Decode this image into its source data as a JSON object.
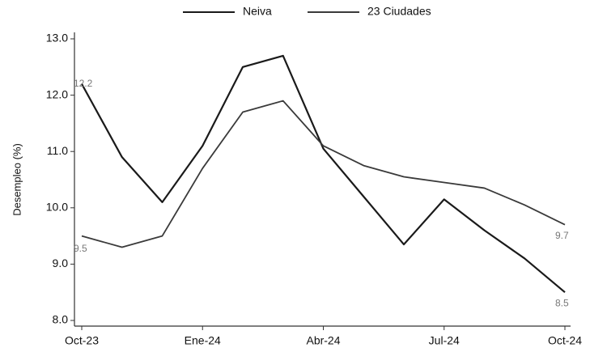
{
  "chart_data": {
    "type": "line",
    "ylabel": "Desempleo (%)",
    "categories": [
      "Oct-23",
      null,
      null,
      "Ene-24",
      null,
      null,
      "Abr-24",
      null,
      null,
      "Jul-24",
      null,
      null,
      "Oct-24"
    ],
    "series": [
      {
        "name": "Neiva",
        "color": "#1a1a1a",
        "values": [
          12.2,
          10.9,
          10.1,
          11.1,
          12.5,
          12.7,
          11.05,
          10.2,
          9.35,
          10.15,
          9.6,
          9.1,
          8.5
        ],
        "value_labels": [
          "12.2",
          null,
          null,
          null,
          null,
          null,
          null,
          null,
          null,
          null,
          null,
          null,
          "8.5"
        ]
      },
      {
        "name": "23 Ciudades",
        "color": "#3a3a3a",
        "values": [
          9.5,
          9.3,
          9.5,
          10.7,
          11.7,
          11.9,
          11.1,
          10.75,
          10.55,
          10.45,
          10.35,
          10.05,
          9.7
        ],
        "value_labels": [
          "9.5",
          null,
          null,
          null,
          null,
          null,
          null,
          null,
          null,
          null,
          null,
          null,
          "9.7"
        ]
      }
    ],
    "ylim": [
      8.0,
      13.0
    ],
    "yticks": [
      {
        "value": 8,
        "label": "8.0"
      },
      {
        "value": 9,
        "label": "9.0"
      },
      {
        "value": 10,
        "label": "10.0"
      },
      {
        "value": 11,
        "label": "11.0"
      },
      {
        "value": 12,
        "label": "12.0"
      },
      {
        "value": 13,
        "label": "13.0"
      }
    ],
    "legend": "top",
    "grid": false
  }
}
